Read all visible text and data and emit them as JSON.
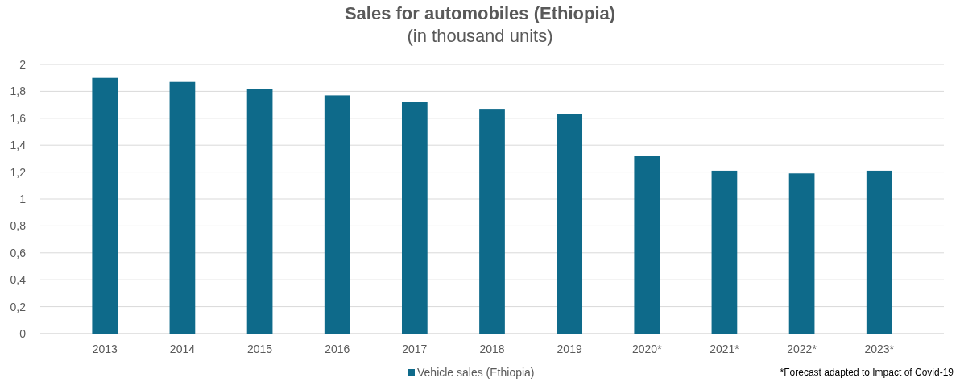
{
  "chart_data": {
    "type": "bar",
    "title": "Sales for automobiles (Ethiopia)",
    "subtitle": "(in thousand units)",
    "categories": [
      "2013",
      "2014",
      "2015",
      "2016",
      "2017",
      "2018",
      "2019",
      "2020*",
      "2021*",
      "2022*",
      "2023*"
    ],
    "series": [
      {
        "name": "Vehicle sales (Ethiopia)",
        "color": "#0e6a8a",
        "values": [
          1.9,
          1.87,
          1.82,
          1.77,
          1.72,
          1.67,
          1.63,
          1.32,
          1.21,
          1.19,
          1.21
        ]
      }
    ],
    "ylim": [
      0,
      2
    ],
    "yticks": [
      0,
      {
        "value": 0.2,
        "label": "0,2"
      },
      {
        "value": 0.4,
        "label": "0,4"
      },
      {
        "value": 0.6,
        "label": "0,6"
      },
      {
        "value": 0.8,
        "label": "0,8"
      },
      1,
      {
        "value": 1.2,
        "label": "1,2"
      },
      {
        "value": 1.4,
        "label": "1,4"
      },
      {
        "value": 1.6,
        "label": "1,6"
      },
      {
        "value": 1.8,
        "label": "1,8"
      },
      2
    ],
    "grid": "y",
    "legend": "bottom",
    "annotations": [
      "*Forecast adapted to Impact of Covid-19"
    ]
  }
}
